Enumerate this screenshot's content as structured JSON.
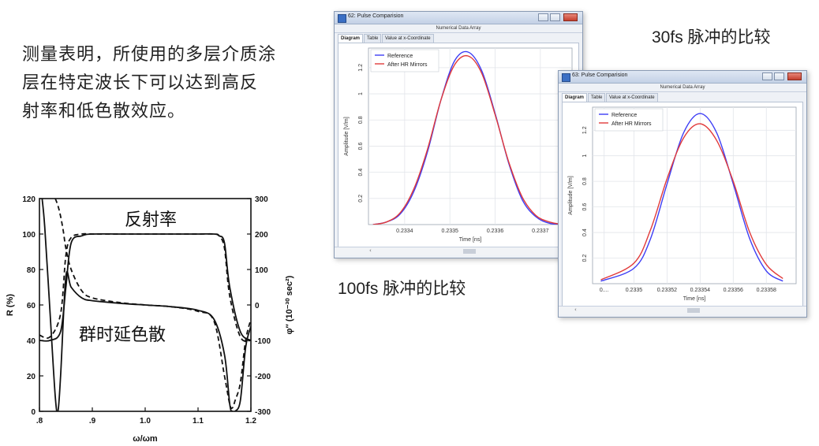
{
  "paragraph": {
    "line1": "测量表明，所使用的多层介质涂",
    "line2": "层在特定波长下可以达到高反",
    "line3": "射率和低色散效应。"
  },
  "captions": {
    "caption_30fs": "30fs 脉冲的比较",
    "caption_100fs": "100fs 脉冲的比较"
  },
  "chart_data": [
    {
      "type": "line",
      "title": "",
      "xlabel": "ω/ωm",
      "ylabel": "R (%)",
      "ylabel_right": "φ″ (10⁻³⁰ sec²)",
      "x_ticks": [
        ".8",
        ".9",
        "1.0",
        "1.1",
        "1.2"
      ],
      "y_ticks": [
        "0",
        "20",
        "40",
        "60",
        "80",
        "100",
        "120"
      ],
      "y2_ticks": [
        "-300",
        "-200",
        "-100",
        "0",
        "100",
        "200",
        "300"
      ],
      "xlim": [
        0.8,
        1.2
      ],
      "ylim": [
        0,
        120
      ],
      "y2lim": [
        -300,
        300
      ],
      "annotations": [
        "反射率",
        "群时延色散"
      ],
      "series": [
        {
          "label": "反射率",
          "style": "solid",
          "x": [
            0.8,
            0.82,
            0.84,
            0.85,
            0.86,
            0.88,
            0.9,
            0.95,
            1.0,
            1.05,
            1.1,
            1.13,
            1.14,
            1.15,
            1.16,
            1.18,
            1.2
          ],
          "y": [
            40,
            40,
            45,
            70,
            95,
            99,
            100,
            100,
            100,
            100,
            100,
            100,
            99,
            95,
            70,
            45,
            40
          ]
        },
        {
          "label": "反射率",
          "style": "dashed",
          "x": [
            0.8,
            0.82,
            0.84,
            0.85,
            0.86,
            0.88,
            0.9,
            0.95,
            1.0,
            1.05,
            1.1,
            1.13,
            1.14,
            1.15,
            1.16,
            1.18,
            1.2
          ],
          "y": [
            43,
            42,
            55,
            88,
            98,
            100,
            100,
            100,
            100,
            100,
            100,
            100,
            99,
            92,
            65,
            42,
            40
          ]
        },
        {
          "label": "群时延色散",
          "style": "solid",
          "x": [
            0.805,
            0.81,
            0.82,
            0.83,
            0.835,
            0.84,
            0.85,
            0.86,
            0.88,
            0.9,
            0.95,
            1.0,
            1.05,
            1.1,
            1.13,
            1.15,
            1.16,
            1.165,
            1.17,
            1.18,
            1.19,
            1.2
          ],
          "y2": [
            300,
            220,
            -20,
            -260,
            -300,
            -200,
            80,
            50,
            20,
            12,
            5,
            0,
            -5,
            -15,
            -40,
            -140,
            -280,
            -300,
            -300,
            -270,
            -120,
            -60
          ]
        },
        {
          "label": "群时延色散",
          "style": "dashed",
          "x": [
            0.83,
            0.835,
            0.84,
            0.845,
            0.85,
            0.86,
            0.88,
            0.9,
            0.95,
            1.0,
            1.05,
            1.1,
            1.13,
            1.15,
            1.16,
            1.165,
            1.17,
            1.18,
            1.19,
            1.2
          ],
          "y2": [
            300,
            280,
            250,
            210,
            160,
            100,
            40,
            20,
            7,
            0,
            -5,
            -18,
            -45,
            -200,
            -280,
            -290,
            -270,
            -220,
            -100,
            -40
          ]
        }
      ]
    },
    {
      "type": "line",
      "title": "",
      "xlabel": "Time [ns]",
      "ylabel": "Amplitude [V/m]",
      "x_ticks": [
        "0.2334",
        "0.2335",
        "0.2336",
        "0.2337"
      ],
      "y_ticks": [
        "0.2",
        "0.4",
        "0.6",
        "0.8",
        "1",
        "1.2"
      ],
      "xlim": [
        0.23332,
        0.23377
      ],
      "ylim": [
        0,
        1.35
      ],
      "legend": "top-left",
      "series": [
        {
          "name": "Reference",
          "color": "#3d3df5",
          "x": [
            0.23333,
            0.23336,
            0.23339,
            0.23342,
            0.23345,
            0.23348,
            0.23351,
            0.23354,
            0.23357,
            0.2336,
            0.23363,
            0.23366,
            0.23369,
            0.23372,
            0.23375
          ],
          "y": [
            0.0,
            0.02,
            0.08,
            0.25,
            0.55,
            0.95,
            1.25,
            1.32,
            1.18,
            0.85,
            0.47,
            0.19,
            0.06,
            0.01,
            0.0
          ]
        },
        {
          "name": "After HR Mirrors",
          "color": "#e13a3a",
          "x": [
            0.23333,
            0.23336,
            0.23339,
            0.23342,
            0.23345,
            0.23348,
            0.23351,
            0.23354,
            0.23357,
            0.2336,
            0.23363,
            0.23366,
            0.23369,
            0.23372,
            0.23375
          ],
          "y": [
            0.0,
            0.02,
            0.09,
            0.27,
            0.57,
            0.95,
            1.22,
            1.29,
            1.16,
            0.84,
            0.48,
            0.21,
            0.07,
            0.02,
            0.0
          ]
        }
      ]
    },
    {
      "type": "line",
      "title": "",
      "xlabel": "Time [ns]",
      "ylabel": "Amplitude [V/m]",
      "x_ticks": [
        "0....",
        "0.2335",
        "0.23352",
        "0.23354",
        "0.23356",
        "0.23358"
      ],
      "y_ticks": [
        "0.2",
        "0.4",
        "0.6",
        "0.8",
        "1",
        "1.2"
      ],
      "xlim": [
        0.233475,
        0.233598
      ],
      "ylim": [
        0,
        1.38
      ],
      "legend": "top-left",
      "series": [
        {
          "name": "Reference",
          "color": "#3d3df5",
          "x": [
            0.23348,
            0.2335,
            0.23351,
            0.23352,
            0.23353,
            0.23354,
            0.23355,
            0.23356,
            0.23357,
            0.23358,
            0.23359
          ],
          "y": [
            0.02,
            0.12,
            0.35,
            0.78,
            1.18,
            1.33,
            1.18,
            0.78,
            0.35,
            0.1,
            0.02
          ]
        },
        {
          "name": "After HR Mirrors",
          "color": "#e13a3a",
          "x": [
            0.23348,
            0.2335,
            0.23351,
            0.23352,
            0.23353,
            0.23354,
            0.23355,
            0.23356,
            0.23357,
            0.23358,
            0.23359
          ],
          "y": [
            0.03,
            0.16,
            0.42,
            0.82,
            1.14,
            1.25,
            1.12,
            0.8,
            0.4,
            0.15,
            0.04
          ]
        }
      ]
    }
  ],
  "window_back": {
    "title": "62: Pulse Comparision",
    "subtitle": "Numerical Data Array",
    "tabs": [
      "Diagram",
      "Table",
      "Value at x-Coordinate"
    ],
    "scroll_arrow": "‹"
  },
  "window_front": {
    "title": "63: Pulse Comparision",
    "subtitle": "Numerical Data Array",
    "tabs": [
      "Diagram",
      "Table",
      "Value at x-Coordinate"
    ],
    "scroll_arrow": "‹"
  }
}
